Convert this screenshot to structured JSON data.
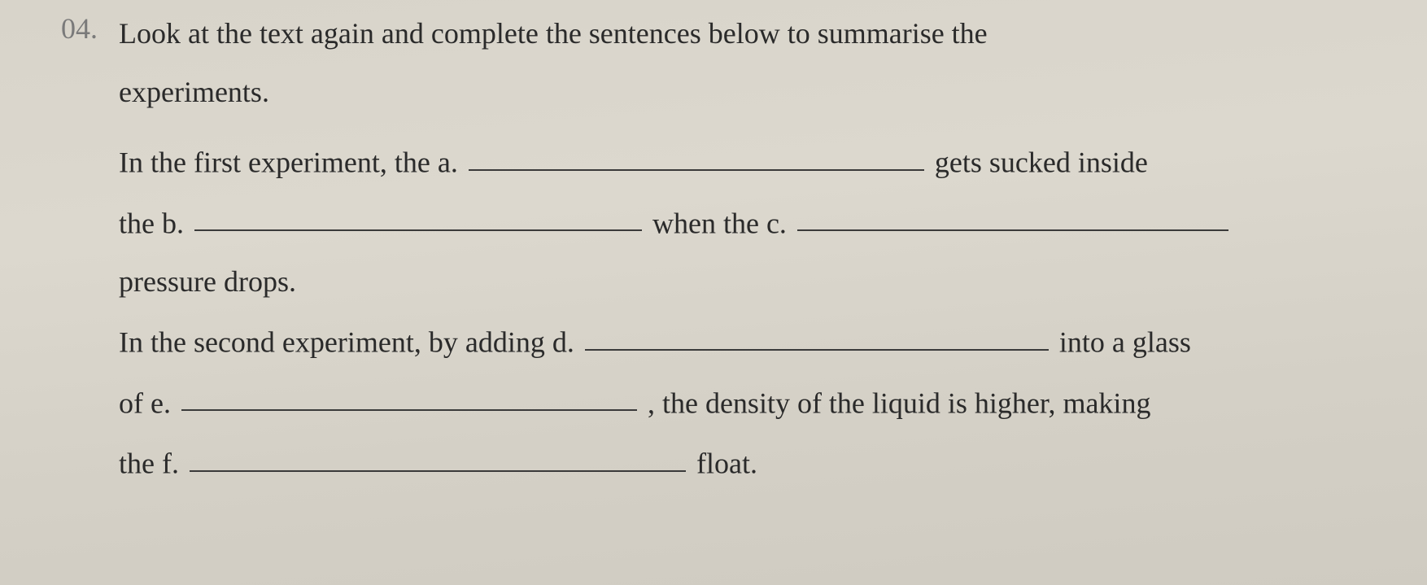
{
  "question": {
    "number": "04.",
    "prompt_line1": "Look at the text again and complete the sentences below to summarise the",
    "prompt_line2": "experiments.",
    "sent1_seg1": "In the first experiment, the a.",
    "sent1_seg2": "gets sucked inside",
    "sent1_seg3": "the b.",
    "sent1_seg4": "when the c.",
    "sent1_seg5": "pressure drops.",
    "sent2_seg1": "In the second experiment, by adding d.",
    "sent2_seg2": "into a glass",
    "sent2_seg3": "of e.",
    "sent2_seg4": ", the density of the liquid is higher, making",
    "sent2_seg5": "the f.",
    "sent2_seg6": "float."
  },
  "style": {
    "blank_a_width": 560,
    "blank_b_width": 550,
    "blank_c_width": 530,
    "blank_d_width": 570,
    "blank_e_width": 560,
    "blank_f_width": 610,
    "font_size": 36,
    "text_color": "#2a2a2a",
    "num_color": "#7a7a7a",
    "bg_color": "#d9d5cc",
    "underline_color": "#3a3a3a"
  }
}
